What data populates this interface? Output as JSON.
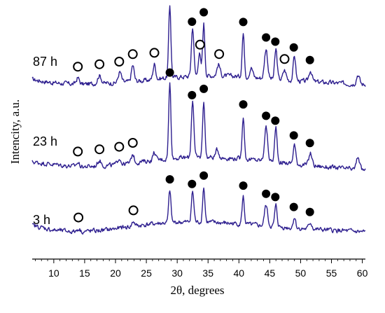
{
  "chart_data": {
    "type": "line",
    "xlabel": "2θ, degrees",
    "ylabel": "Intencity, a.u.",
    "xlim": [
      6.5,
      60.5
    ],
    "xticks": [
      10,
      15,
      20,
      25,
      30,
      35,
      40,
      45,
      50,
      55,
      60
    ],
    "tick_labels": [
      "10",
      "15",
      "20",
      "25",
      "30",
      "35",
      "40",
      "45",
      "50",
      "55",
      "60"
    ],
    "y_ticks_shown": false,
    "grid": false,
    "line_color": "#2e1f8f",
    "peak_markers": {
      "filled": "phase marked with filled circles",
      "open": "phase marked with open circles"
    },
    "series": [
      {
        "name": "87 h",
        "baseline": [
          [
            6.5,
            0.16
          ],
          [
            10,
            0.12
          ],
          [
            14,
            0.1
          ],
          [
            20,
            0.12
          ],
          [
            25,
            0.15
          ],
          [
            28,
            0.18
          ],
          [
            32,
            0.2
          ],
          [
            36,
            0.21
          ],
          [
            40,
            0.2
          ],
          [
            45,
            0.17
          ],
          [
            50,
            0.14
          ],
          [
            55,
            0.12
          ],
          [
            60,
            0.1
          ]
        ],
        "peaks": [
          {
            "x": 13.9,
            "h": 0.08,
            "w": 0.25
          },
          {
            "x": 17.4,
            "h": 0.1,
            "w": 0.3
          },
          {
            "x": 20.7,
            "h": 0.13,
            "w": 0.25
          },
          {
            "x": 22.8,
            "h": 0.2,
            "w": 0.22
          },
          {
            "x": 26.3,
            "h": 0.19,
            "w": 0.22
          },
          {
            "x": 28.8,
            "h": 0.9,
            "w": 0.18
          },
          {
            "x": 32.5,
            "h": 0.61,
            "w": 0.2
          },
          {
            "x": 33.6,
            "h": 0.28,
            "w": 0.2
          },
          {
            "x": 34.3,
            "h": 0.65,
            "w": 0.18
          },
          {
            "x": 36.7,
            "h": 0.14,
            "w": 0.25
          },
          {
            "x": 40.7,
            "h": 0.54,
            "w": 0.18
          },
          {
            "x": 42.0,
            "h": 0.12,
            "w": 0.25
          },
          {
            "x": 44.4,
            "h": 0.37,
            "w": 0.25
          },
          {
            "x": 46.0,
            "h": 0.37,
            "w": 0.2
          },
          {
            "x": 47.4,
            "h": 0.12,
            "w": 0.25
          },
          {
            "x": 49.0,
            "h": 0.31,
            "w": 0.2
          },
          {
            "x": 51.6,
            "h": 0.14,
            "w": 0.25
          },
          {
            "x": 59.3,
            "h": 0.12,
            "w": 0.25
          }
        ],
        "markers": [
          {
            "x": 28.8,
            "type": "filled"
          },
          {
            "x": 32.4,
            "type": "filled"
          },
          {
            "x": 34.3,
            "type": "filled"
          },
          {
            "x": 40.7,
            "type": "filled"
          },
          {
            "x": 44.4,
            "type": "filled"
          },
          {
            "x": 45.9,
            "type": "filled"
          },
          {
            "x": 48.9,
            "type": "filled"
          },
          {
            "x": 51.5,
            "type": "filled"
          },
          {
            "x": 13.9,
            "type": "open"
          },
          {
            "x": 17.4,
            "type": "open"
          },
          {
            "x": 20.6,
            "type": "open"
          },
          {
            "x": 22.8,
            "type": "open"
          },
          {
            "x": 26.3,
            "type": "open"
          },
          {
            "x": 33.7,
            "type": "open"
          },
          {
            "x": 36.8,
            "type": "open"
          },
          {
            "x": 47.4,
            "type": "open"
          }
        ]
      },
      {
        "name": "23 h",
        "baseline": [
          [
            6.5,
            0.18
          ],
          [
            10,
            0.15
          ],
          [
            14,
            0.12
          ],
          [
            18,
            0.13
          ],
          [
            22,
            0.16
          ],
          [
            26,
            0.2
          ],
          [
            30,
            0.23
          ],
          [
            35,
            0.24
          ],
          [
            40,
            0.22
          ],
          [
            45,
            0.19
          ],
          [
            50,
            0.15
          ],
          [
            55,
            0.11
          ],
          [
            60,
            0.08
          ]
        ],
        "peaks": [
          {
            "x": 13.9,
            "h": 0.05,
            "w": 0.25
          },
          {
            "x": 17.4,
            "h": 0.07,
            "w": 0.3
          },
          {
            "x": 20.6,
            "h": 0.08,
            "w": 0.25
          },
          {
            "x": 22.8,
            "h": 0.11,
            "w": 0.22
          },
          {
            "x": 26.3,
            "h": 0.1,
            "w": 0.22
          },
          {
            "x": 28.8,
            "h": 0.93,
            "w": 0.18
          },
          {
            "x": 32.5,
            "h": 0.72,
            "w": 0.2
          },
          {
            "x": 34.3,
            "h": 0.71,
            "w": 0.18
          },
          {
            "x": 36.5,
            "h": 0.1,
            "w": 0.25
          },
          {
            "x": 40.7,
            "h": 0.54,
            "w": 0.18
          },
          {
            "x": 44.4,
            "h": 0.42,
            "w": 0.25
          },
          {
            "x": 46.0,
            "h": 0.42,
            "w": 0.2
          },
          {
            "x": 49.0,
            "h": 0.24,
            "w": 0.2
          },
          {
            "x": 51.6,
            "h": 0.15,
            "w": 0.25
          },
          {
            "x": 59.3,
            "h": 0.16,
            "w": 0.25
          }
        ],
        "markers": [
          {
            "x": 28.8,
            "type": "filled"
          },
          {
            "x": 32.4,
            "type": "filled"
          },
          {
            "x": 34.3,
            "type": "filled"
          },
          {
            "x": 40.7,
            "type": "filled"
          },
          {
            "x": 44.4,
            "type": "filled"
          },
          {
            "x": 45.9,
            "type": "filled"
          },
          {
            "x": 48.9,
            "type": "filled"
          },
          {
            "x": 51.5,
            "type": "filled"
          },
          {
            "x": 13.9,
            "type": "open"
          },
          {
            "x": 17.4,
            "type": "open"
          },
          {
            "x": 20.6,
            "type": "open"
          },
          {
            "x": 22.8,
            "type": "open"
          }
        ]
      },
      {
        "name": "3 h",
        "baseline": [
          [
            6.5,
            0.2
          ],
          [
            10,
            0.14
          ],
          [
            14,
            0.12
          ],
          [
            18,
            0.14
          ],
          [
            22,
            0.18
          ],
          [
            26,
            0.22
          ],
          [
            30,
            0.24
          ],
          [
            35,
            0.24
          ],
          [
            40,
            0.22
          ],
          [
            45,
            0.19
          ],
          [
            50,
            0.16
          ],
          [
            55,
            0.14
          ],
          [
            60,
            0.12
          ]
        ],
        "peaks": [
          {
            "x": 14.0,
            "h": 0.04,
            "w": 0.25
          },
          {
            "x": 22.9,
            "h": 0.06,
            "w": 0.22
          },
          {
            "x": 28.8,
            "h": 0.4,
            "w": 0.18
          },
          {
            "x": 32.5,
            "h": 0.38,
            "w": 0.2
          },
          {
            "x": 34.3,
            "h": 0.44,
            "w": 0.18
          },
          {
            "x": 40.7,
            "h": 0.34,
            "w": 0.18
          },
          {
            "x": 44.4,
            "h": 0.26,
            "w": 0.25
          },
          {
            "x": 46.0,
            "h": 0.26,
            "w": 0.2
          },
          {
            "x": 49.0,
            "h": 0.14,
            "w": 0.2
          },
          {
            "x": 51.6,
            "h": 0.08,
            "w": 0.25
          }
        ],
        "markers": [
          {
            "x": 28.8,
            "type": "filled"
          },
          {
            "x": 32.4,
            "type": "filled"
          },
          {
            "x": 34.3,
            "type": "filled"
          },
          {
            "x": 40.7,
            "type": "filled"
          },
          {
            "x": 44.4,
            "type": "filled"
          },
          {
            "x": 45.9,
            "type": "filled"
          },
          {
            "x": 48.9,
            "type": "filled"
          },
          {
            "x": 51.5,
            "type": "filled"
          },
          {
            "x": 14.0,
            "type": "open"
          },
          {
            "x": 22.9,
            "type": "open"
          }
        ]
      }
    ]
  }
}
